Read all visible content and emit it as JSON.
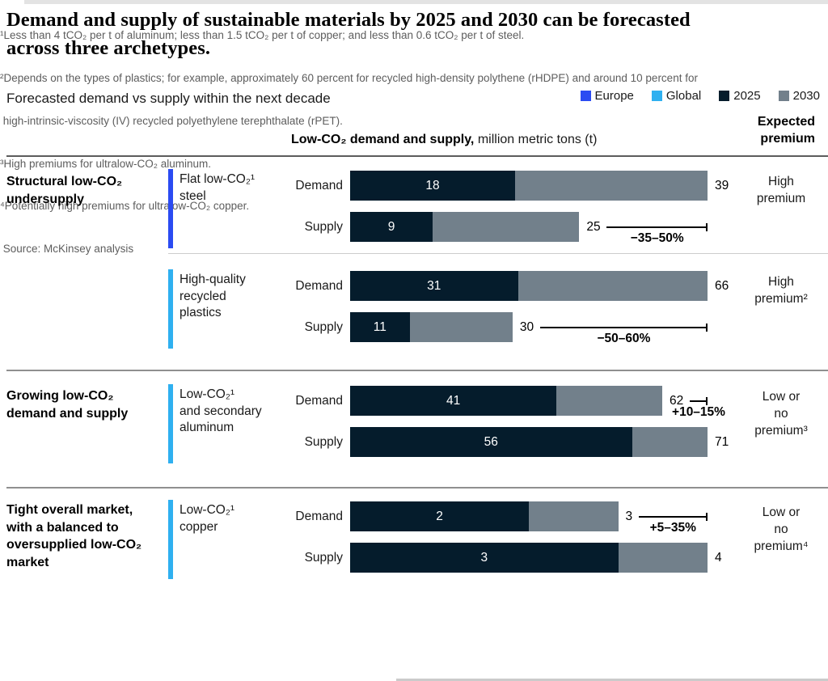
{
  "page": {
    "title_line1": "Demand and supply of sustainable materials by 2025 and 2030 can be forecasted",
    "title_line2": "across three archetypes.",
    "subtitle": "Forecasted demand vs supply within the next decade"
  },
  "legend": {
    "items": [
      {
        "label": "Europe",
        "color": "#2B4BF2"
      },
      {
        "label": "Global",
        "color": "#2FB0F0"
      },
      {
        "label": "2025",
        "color": "#051C2C"
      },
      {
        "label": "2030",
        "color": "#72808B"
      }
    ]
  },
  "columns": {
    "measure_bold": "Low-CO₂ demand and supply,",
    "measure_rest": " million metric tons (t)",
    "premium_line1": "Expected",
    "premium_line2": "premium"
  },
  "chart_data": {
    "type": "bar",
    "title": "Forecasted demand vs supply within the next decade",
    "unit": "million metric tons (t)",
    "series_labels": [
      "2025",
      "2030"
    ],
    "colors": {
      "2025": "#051C2C",
      "2030": "#72808B",
      "europe": "#2B4BF2",
      "global": "#2FB0F0"
    },
    "sections": [
      {
        "archetype_lines": [
          "Structural low-CO₂",
          "undersupply"
        ],
        "materials": [
          {
            "name_lines": [
              "Flat low-CO₂¹",
              "steel"
            ],
            "scope": "europe",
            "rows": [
              {
                "label": "Demand",
                "v2025": 18,
                "v2030": 39
              },
              {
                "label": "Supply",
                "v2025": 9,
                "v2030": 25
              }
            ],
            "gap": {
              "row": "Supply",
              "label": "−35–50%"
            },
            "premium_lines": [
              "High",
              "premium"
            ]
          },
          {
            "name_lines": [
              "High-quality",
              "recycled",
              "plastics"
            ],
            "scope": "global",
            "rows": [
              {
                "label": "Demand",
                "v2025": 31,
                "v2030": 66
              },
              {
                "label": "Supply",
                "v2025": 11,
                "v2030": 30
              }
            ],
            "gap": {
              "row": "Supply",
              "label": "−50–60%"
            },
            "premium_lines": [
              "High",
              "premium²"
            ]
          }
        ]
      },
      {
        "archetype_lines": [
          "Growing low-CO₂",
          "demand and supply"
        ],
        "materials": [
          {
            "name_lines": [
              "Low-CO₂¹",
              "and secondary",
              "aluminum"
            ],
            "scope": "global",
            "rows": [
              {
                "label": "Demand",
                "v2025": 41,
                "v2030": 62
              },
              {
                "label": "Supply",
                "v2025": 56,
                "v2030": 71
              }
            ],
            "gap": {
              "row": "Demand",
              "label": "+10–15%"
            },
            "premium_lines": [
              "Low or no",
              "premium³"
            ]
          }
        ]
      },
      {
        "archetype_lines": [
          "Tight overall market,",
          "with a balanced to",
          "oversupplied low-CO₂",
          "market"
        ],
        "materials": [
          {
            "name_lines": [
              "Low-CO₂¹",
              "copper"
            ],
            "scope": "global",
            "rows": [
              {
                "label": "Demand",
                "v2025": 2,
                "v2030": 3
              },
              {
                "label": "Supply",
                "v2025": 3,
                "v2030": 4
              }
            ],
            "gap": {
              "row": "Demand",
              "label": "+5–35%"
            },
            "premium_lines": [
              "Low or no",
              "premium⁴"
            ]
          }
        ]
      }
    ]
  },
  "footnotes": [
    "¹Less than 4 tCO₂ per t of aluminum; less than 1.5 tCO₂ per t of copper; and less than 0.6 tCO₂ per t of steel.",
    "²Depends on the types of plastics; for example, approximately 60 percent for recycled high-density polythene (rHDPE) and around 10 percent for",
    " high-intrinsic-viscosity (IV) recycled polyethylene terephthalate (rPET).",
    "³High premiums for ultralow-CO₂ aluminum.",
    "⁴Potentially high premiums for ultralow-CO₂ copper.",
    " Source: McKinsey analysis"
  ]
}
